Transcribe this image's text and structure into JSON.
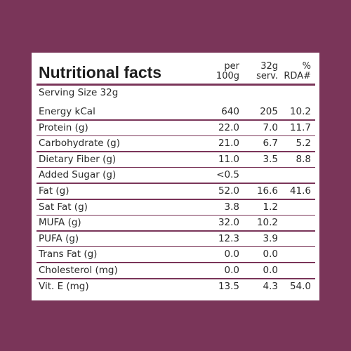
{
  "header": {
    "title": "Nutritional facts",
    "columns": [
      [
        "per",
        "100g"
      ],
      [
        "32g",
        "serv."
      ],
      [
        "%",
        "RDA#"
      ]
    ]
  },
  "serving_size": "Serving Size 32g",
  "table": {
    "rows": [
      [
        "Energy kCal",
        "640",
        "205",
        "10.2"
      ],
      [
        "Protein (g)",
        "22.0",
        "7.0",
        "11.7"
      ],
      [
        "Carbohydrate (g)",
        "21.0",
        "6.7",
        "5.2"
      ],
      [
        "Dietary Fiber (g)",
        "11.0",
        "3.5",
        "8.8"
      ],
      [
        "Added Sugar (g)",
        "<0.5",
        null,
        null
      ],
      [
        "Fat (g)",
        "52.0",
        "16.6",
        "41.6"
      ],
      [
        "Sat Fat (g)",
        "3.8",
        "1.2",
        null
      ],
      [
        "MUFA (g)",
        "32.0",
        "10.2",
        null
      ],
      [
        "PUFA (g)",
        "12.3",
        "3.9",
        null
      ],
      [
        "Trans Fat (g)",
        "0.0",
        "0.0",
        null
      ],
      [
        "Cholesterol (mg)",
        "0.0",
        "0.0",
        null
      ],
      [
        "Vit. E (mg)",
        "13.5",
        "4.3",
        "54.0"
      ]
    ]
  }
}
